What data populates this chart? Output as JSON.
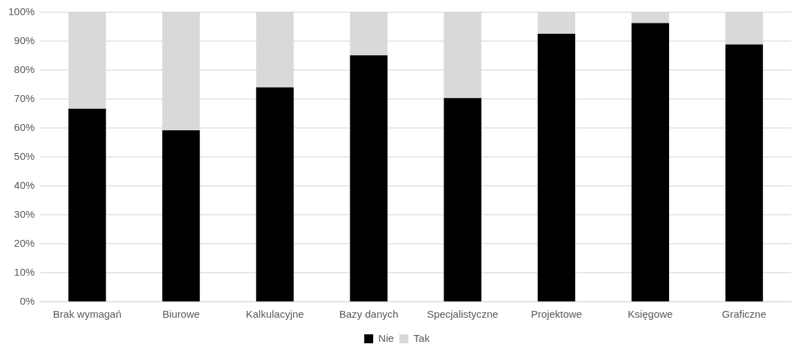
{
  "chart_data": {
    "type": "bar",
    "stacked": true,
    "categories": [
      "Brak wymagań",
      "Biurowe",
      "Kalkulacyjne",
      "Bazy danych",
      "Specjalistyczne",
      "Projektowe",
      "Księgowe",
      "Graficzne"
    ],
    "series": [
      {
        "name": "Nie",
        "color": "#000000",
        "values": [
          66.7,
          59.3,
          74.1,
          85.2,
          70.4,
          92.6,
          96.3,
          88.9
        ]
      },
      {
        "name": "Tak",
        "color": "#d9d9d9",
        "values": [
          33.3,
          40.7,
          25.9,
          14.8,
          29.6,
          7.4,
          3.7,
          11.1
        ]
      }
    ],
    "ylim": [
      0,
      100
    ],
    "yticks": [
      {
        "value": 0,
        "label": "0%"
      },
      {
        "value": 10,
        "label": "10%"
      },
      {
        "value": 20,
        "label": "20%"
      },
      {
        "value": 30,
        "label": "30%"
      },
      {
        "value": 40,
        "label": "40%"
      },
      {
        "value": 50,
        "label": "50%"
      },
      {
        "value": 60,
        "label": "60%"
      },
      {
        "value": 70,
        "label": "70%"
      },
      {
        "value": 80,
        "label": "80%"
      },
      {
        "value": 90,
        "label": "90%"
      },
      {
        "value": 100,
        "label": "100%"
      }
    ],
    "grid": "y",
    "legend": "bottom"
  }
}
